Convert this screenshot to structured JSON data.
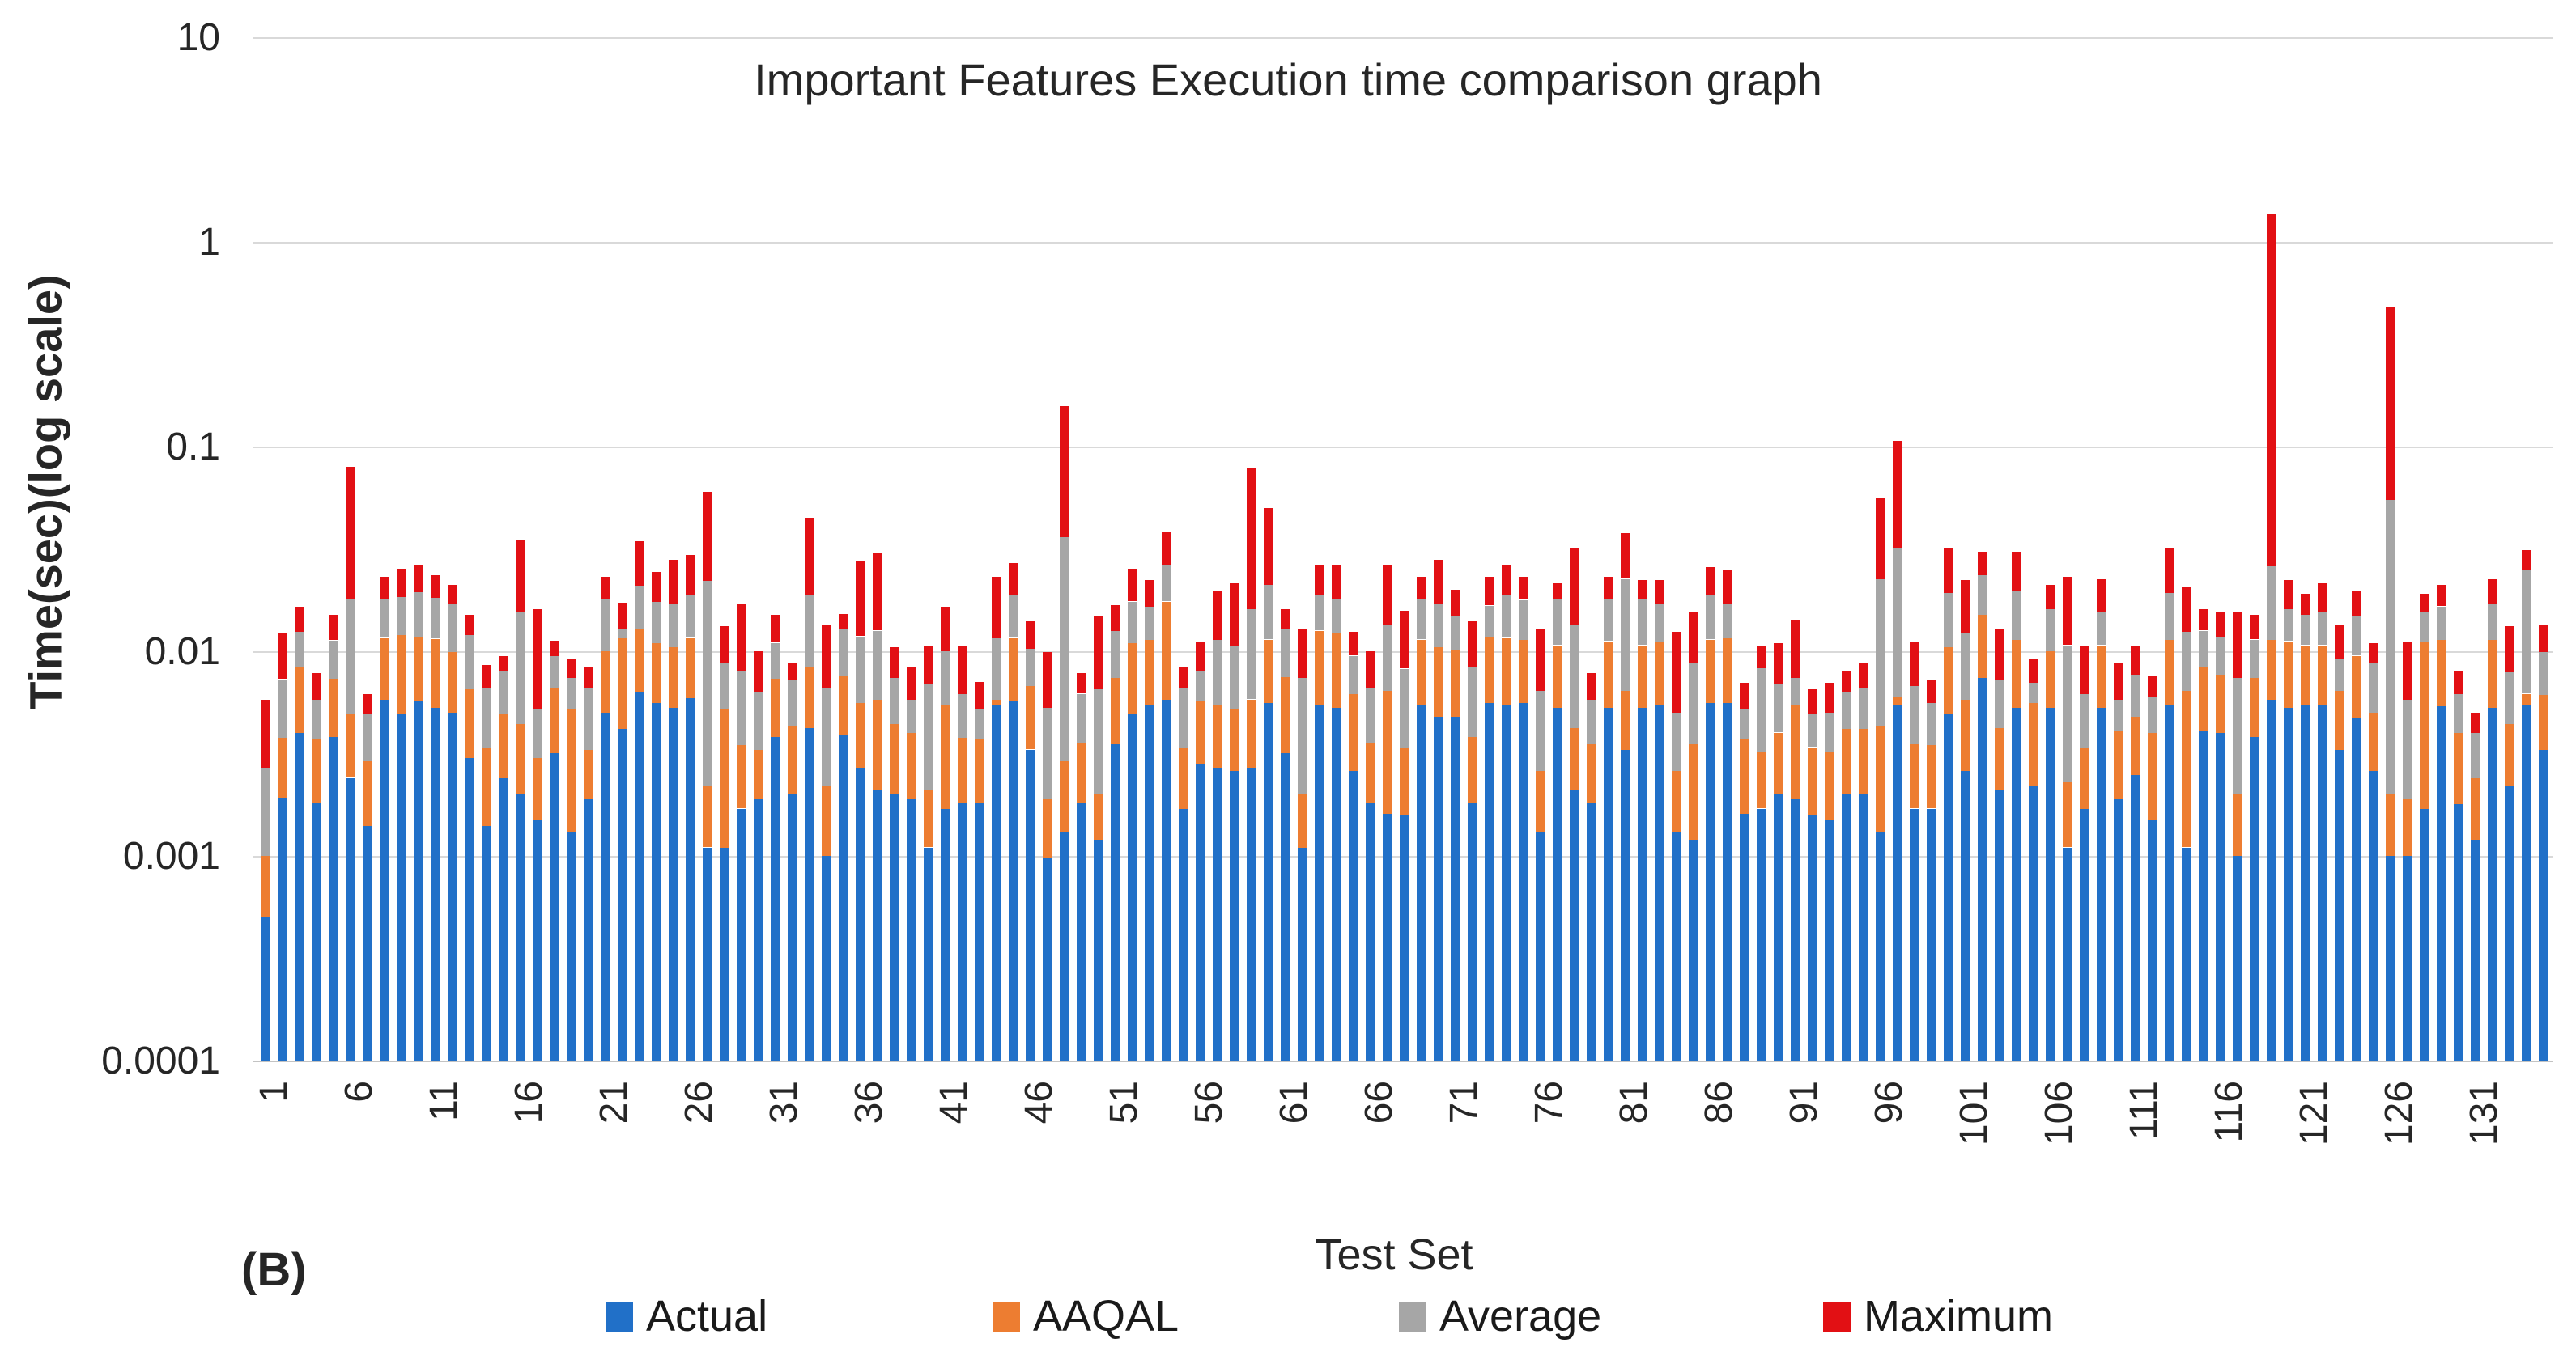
{
  "figure_label": "(B)",
  "title": "Important Features Execution time comparison graph",
  "y_axis": {
    "title": "Time(sec)(log scale)",
    "tick_labels": [
      "10",
      "1",
      "0.1",
      "0.01",
      "0.001",
      "0.0001"
    ]
  },
  "x_axis": {
    "title": "Test Set",
    "tick_labels": [
      "1",
      "6",
      "11",
      "16",
      "21",
      "26",
      "31",
      "36",
      "41",
      "46",
      "51",
      "56",
      "61",
      "66",
      "71",
      "76",
      "81",
      "86",
      "91",
      "96",
      "101",
      "106",
      "111",
      "116",
      "121",
      "126",
      "131"
    ]
  },
  "legend": [
    {
      "label": "Actual",
      "color": "#2170C8"
    },
    {
      "label": "AAQAL",
      "color": "#ED7D31"
    },
    {
      "label": "Average",
      "color": "#A6A6A6"
    },
    {
      "label": "Maximum",
      "color": "#E21014"
    }
  ],
  "chart_data": {
    "type": "bar",
    "stacked": true,
    "log_scale_y": true,
    "ylim": [
      0.0001,
      10
    ],
    "grid": true,
    "legend_position": "bottom",
    "num_test_sets": 135,
    "title": "Important Features Execution time comparison graph",
    "xlabel": "Test Set",
    "ylabel": "Time(sec)(log scale)",
    "values_are": "cumulative stack-top values in seconds, read from the log axis; per-series segment value = top minus previous series top (stack order Actual, AAQAL, Average, Maximum)",
    "series": [
      {
        "name": "Actual",
        "color": "#2170C8",
        "tops_seconds": [
          0.0005,
          0.0019,
          0.004,
          0.0018,
          0.0038,
          0.0024,
          0.0014,
          0.0058,
          0.0049,
          0.0057,
          0.0053,
          0.005,
          0.003,
          0.0014,
          0.0024,
          0.002,
          0.0015,
          0.0032,
          0.0013,
          0.0019,
          0.005,
          0.0042,
          0.0063,
          0.0056,
          0.0053,
          0.0059,
          0.0011,
          0.0011,
          0.0017,
          0.0019,
          0.0038,
          0.002,
          0.0042,
          0.001,
          0.0039,
          0.0027,
          0.0021,
          0.002,
          0.0019,
          0.0011,
          0.0017,
          0.0018,
          0.0018,
          0.0055,
          0.0057,
          0.0033,
          0.00097,
          0.0013,
          0.0018,
          0.0012,
          0.0035,
          0.005,
          0.0055,
          0.0058,
          0.0017,
          0.0028,
          0.0027,
          0.0026,
          0.0027,
          0.0056,
          0.0032,
          0.0011,
          0.0055,
          0.0053,
          0.0026,
          0.0018,
          0.0016,
          0.0016,
          0.0055,
          0.0048,
          0.0048,
          0.0018,
          0.0056,
          0.0055,
          0.0056,
          0.0013,
          0.0053,
          0.0021,
          0.0018,
          0.0053,
          0.0033,
          0.0053,
          0.0055,
          0.0013,
          0.0012,
          0.0056,
          0.0056,
          0.0016,
          0.0017,
          0.002,
          0.0019,
          0.0016,
          0.0015,
          0.002,
          0.002,
          0.0013,
          0.0055,
          0.0017,
          0.0017,
          0.005,
          0.0026,
          0.0074,
          0.0021,
          0.0053,
          0.0022,
          0.0053,
          0.0011,
          0.0017,
          0.0053,
          0.0019,
          0.0025,
          0.0015,
          0.0055,
          0.0011,
          0.0041,
          0.004,
          0.001,
          0.0038,
          0.0058,
          0.0053,
          0.0055,
          0.0055,
          0.0033,
          0.0047,
          0.0026,
          0.001,
          0.001,
          0.0017,
          0.0054,
          0.0018,
          0.0012,
          0.0053,
          0.0022,
          0.0055,
          0.0033
        ]
      },
      {
        "name": "AAQAL",
        "color": "#ED7D31",
        "tops_seconds": [
          0.001,
          0.0038,
          0.0084,
          0.0037,
          0.0074,
          0.0049,
          0.0029,
          0.0116,
          0.012,
          0.0118,
          0.0115,
          0.0099,
          0.0065,
          0.0034,
          0.005,
          0.0044,
          0.003,
          0.0066,
          0.0052,
          0.0033,
          0.01,
          0.0116,
          0.0128,
          0.011,
          0.0105,
          0.0116,
          0.0022,
          0.0052,
          0.0035,
          0.0033,
          0.0074,
          0.0043,
          0.0084,
          0.0022,
          0.0076,
          0.0056,
          0.0058,
          0.0044,
          0.004,
          0.0021,
          0.0055,
          0.0038,
          0.0037,
          0.0058,
          0.0116,
          0.0068,
          0.0019,
          0.0029,
          0.0036,
          0.002,
          0.0074,
          0.011,
          0.0114,
          0.0175,
          0.0034,
          0.0057,
          0.0055,
          0.0052,
          0.0058,
          0.0114,
          0.0075,
          0.002,
          0.0126,
          0.0122,
          0.0062,
          0.0036,
          0.0064,
          0.0034,
          0.0114,
          0.0105,
          0.0101,
          0.0038,
          0.0118,
          0.0116,
          0.0114,
          0.0026,
          0.0107,
          0.0042,
          0.0035,
          0.0112,
          0.0064,
          0.0107,
          0.0112,
          0.0026,
          0.0035,
          0.0114,
          0.0116,
          0.0037,
          0.0032,
          0.004,
          0.0055,
          0.0034,
          0.0032,
          0.0042,
          0.0042,
          0.0043,
          0.006,
          0.0035,
          0.0035,
          0.0105,
          0.0058,
          0.015,
          0.0042,
          0.0114,
          0.0056,
          0.01,
          0.0023,
          0.0034,
          0.0107,
          0.0041,
          0.0048,
          0.004,
          0.0114,
          0.0064,
          0.0084,
          0.0077,
          0.002,
          0.0074,
          0.0114,
          0.0112,
          0.0107,
          0.0107,
          0.0064,
          0.0095,
          0.005,
          0.002,
          0.0019,
          0.0112,
          0.0114,
          0.004,
          0.0024,
          0.0114,
          0.0044,
          0.0062,
          0.0061
        ]
      },
      {
        "name": "Average",
        "color": "#A6A6A6",
        "tops_seconds": [
          0.0027,
          0.0073,
          0.0124,
          0.0058,
          0.0113,
          0.018,
          0.005,
          0.018,
          0.0184,
          0.0194,
          0.0182,
          0.017,
          0.012,
          0.0066,
          0.008,
          0.0155,
          0.0052,
          0.0095,
          0.0074,
          0.0066,
          0.018,
          0.0128,
          0.021,
          0.0175,
          0.017,
          0.0187,
          0.022,
          0.0088,
          0.008,
          0.0063,
          0.011,
          0.0072,
          0.0187,
          0.0066,
          0.0128,
          0.0118,
          0.0126,
          0.0074,
          0.0058,
          0.007,
          0.01,
          0.0062,
          0.0052,
          0.0116,
          0.019,
          0.0103,
          0.0053,
          0.036,
          0.0062,
          0.0065,
          0.0126,
          0.0175,
          0.0165,
          0.0262,
          0.0066,
          0.008,
          0.0114,
          0.0107,
          0.016,
          0.021,
          0.0128,
          0.0074,
          0.019,
          0.018,
          0.0095,
          0.0066,
          0.0135,
          0.0082,
          0.018,
          0.017,
          0.015,
          0.0084,
          0.0167,
          0.019,
          0.0178,
          0.0064,
          0.018,
          0.0135,
          0.0058,
          0.018,
          0.0225,
          0.018,
          0.017,
          0.005,
          0.0088,
          0.0187,
          0.017,
          0.0052,
          0.0083,
          0.007,
          0.0074,
          0.0049,
          0.005,
          0.0063,
          0.0066,
          0.0225,
          0.0318,
          0.0068,
          0.0056,
          0.0193,
          0.0122,
          0.0235,
          0.0072,
          0.0196,
          0.007,
          0.016,
          0.0107,
          0.0062,
          0.0157,
          0.0058,
          0.0077,
          0.006,
          0.0193,
          0.0124,
          0.0126,
          0.0118,
          0.0074,
          0.0114,
          0.026,
          0.016,
          0.015,
          0.0157,
          0.0092,
          0.015,
          0.0088,
          0.055,
          0.0058,
          0.0155,
          0.0165,
          0.0062,
          0.004,
          0.017,
          0.0079,
          0.025,
          0.0099
        ]
      },
      {
        "name": "Maximum",
        "color": "#E21014",
        "tops_seconds": [
          0.0058,
          0.0122,
          0.0165,
          0.0078,
          0.015,
          0.08,
          0.0062,
          0.0232,
          0.0252,
          0.0263,
          0.0235,
          0.021,
          0.015,
          0.0086,
          0.0095,
          0.035,
          0.016,
          0.0113,
          0.0092,
          0.0083,
          0.0232,
          0.0172,
          0.0345,
          0.0245,
          0.028,
          0.0295,
          0.06,
          0.0133,
          0.017,
          0.01,
          0.015,
          0.0088,
          0.045,
          0.0135,
          0.0152,
          0.0276,
          0.03,
          0.0105,
          0.0084,
          0.0107,
          0.0165,
          0.0107,
          0.0071,
          0.0232,
          0.027,
          0.014,
          0.0099,
          0.157,
          0.0078,
          0.0149,
          0.0168,
          0.0252,
          0.0222,
          0.038,
          0.0083,
          0.0112,
          0.0197,
          0.0215,
          0.078,
          0.05,
          0.016,
          0.0128,
          0.0265,
          0.0263,
          0.0124,
          0.01,
          0.0265,
          0.0157,
          0.023,
          0.028,
          0.02,
          0.014,
          0.023,
          0.0265,
          0.023,
          0.0128,
          0.0215,
          0.032,
          0.0078,
          0.023,
          0.0376,
          0.0222,
          0.0222,
          0.0124,
          0.0155,
          0.0258,
          0.025,
          0.007,
          0.0107,
          0.011,
          0.0143,
          0.0065,
          0.007,
          0.008,
          0.0087,
          0.056,
          0.107,
          0.0112,
          0.0072,
          0.0318,
          0.0222,
          0.0305,
          0.0128,
          0.0305,
          0.0092,
          0.021,
          0.023,
          0.0107,
          0.0225,
          0.0087,
          0.0107,
          0.0076,
          0.032,
          0.0207,
          0.016,
          0.0155,
          0.0155,
          0.015,
          1.38,
          0.0222,
          0.019,
          0.0215,
          0.0135,
          0.0197,
          0.011,
          0.485,
          0.0112,
          0.019,
          0.021,
          0.008,
          0.005,
          0.0225,
          0.0133,
          0.0312,
          0.0135
        ]
      }
    ]
  }
}
